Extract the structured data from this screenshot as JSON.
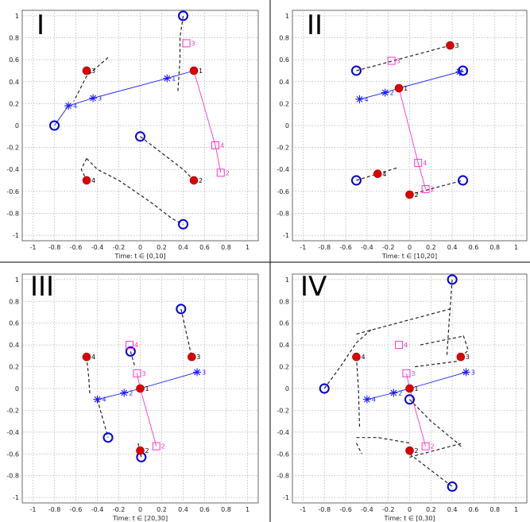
{
  "chart_data": [
    {
      "type": "scatter",
      "title": "I",
      "xlabel": "Time: t ∈ [0,10]",
      "xlim": [
        -1.1,
        1.1
      ],
      "ylim": [
        -1.05,
        1.05
      ],
      "xticks": [
        "-1",
        "-0.8",
        "-0.6",
        "-0.4",
        "-0.2",
        "0",
        "0.2",
        "0.4",
        "0.6",
        "0.8",
        "1"
      ],
      "yticks": [
        "1",
        "0.8",
        "0.6",
        "0.4",
        "0.2",
        "0",
        "-0.2",
        "-0.4",
        "-0.6",
        "-0.8",
        "-1"
      ],
      "grid": true,
      "open_circles": [
        [
          0.4,
          1.0
        ],
        [
          -0.8,
          0.0
        ],
        [
          0.0,
          -0.1
        ],
        [
          0.4,
          -0.9
        ]
      ],
      "red_dots": [
        {
          "x": 0.5,
          "y": 0.5,
          "label": "1"
        },
        {
          "x": 0.5,
          "y": -0.5,
          "label": "2"
        },
        {
          "x": -0.5,
          "y": 0.5,
          "label": "3"
        },
        {
          "x": -0.5,
          "y": -0.5,
          "label": "4"
        }
      ],
      "blue_stars": [
        {
          "x": 0.25,
          "y": 0.43,
          "label": "1"
        },
        {
          "x": -0.44,
          "y": 0.25,
          "label": "3"
        },
        {
          "x": -0.67,
          "y": 0.18,
          "label": "4"
        }
      ],
      "magenta_squares": [
        {
          "x": 0.43,
          "y": 0.75,
          "label": "3"
        },
        {
          "x": 0.7,
          "y": -0.18,
          "label": "4"
        },
        {
          "x": 0.75,
          "y": -0.43,
          "label": "2"
        }
      ],
      "blue_line": [
        [
          -0.8,
          0.0
        ],
        [
          -0.67,
          0.18
        ],
        [
          -0.44,
          0.25
        ],
        [
          0.25,
          0.43
        ],
        [
          0.5,
          0.5
        ]
      ],
      "magenta_line": [
        [
          0.5,
          0.5
        ],
        [
          0.7,
          -0.18
        ],
        [
          0.75,
          -0.43
        ]
      ],
      "dashed_paths": [
        [
          [
            -0.3,
            0.62
          ],
          [
            -0.5,
            0.45
          ],
          [
            -0.62,
            0.22
          ]
        ],
        [
          [
            0.4,
            1.0
          ],
          [
            0.37,
            0.8
          ],
          [
            0.37,
            0.6
          ],
          [
            0.35,
            0.3
          ]
        ],
        [
          [
            0.0,
            -0.1
          ],
          [
            0.2,
            -0.25
          ],
          [
            0.4,
            -0.4
          ],
          [
            0.5,
            -0.5
          ]
        ],
        [
          [
            -0.5,
            -0.3
          ],
          [
            -0.4,
            -0.4
          ],
          [
            -0.2,
            -0.5
          ],
          [
            0.1,
            -0.7
          ],
          [
            0.3,
            -0.85
          ],
          [
            0.4,
            -0.9
          ]
        ],
        [
          [
            -0.5,
            -0.3
          ],
          [
            -0.55,
            -0.4
          ],
          [
            -0.5,
            -0.5
          ]
        ]
      ]
    },
    {
      "type": "scatter",
      "title": "II",
      "xlabel": "Time: t ∈ [10,20]",
      "xlim": [
        -1.1,
        1.1
      ],
      "ylim": [
        -1.05,
        1.05
      ],
      "xticks": [
        "-1",
        "-0.8",
        "-0.6",
        "-0.4",
        "-0.2",
        "0",
        "0.2",
        "0.4",
        "0.6",
        "0.8",
        "1"
      ],
      "yticks": [
        "1",
        "0.8",
        "0.6",
        "0.4",
        "0.2",
        "0",
        "-0.2",
        "-0.4",
        "-0.6",
        "-0.8",
        "-1"
      ],
      "grid": true,
      "open_circles": [
        [
          -0.5,
          0.5
        ],
        [
          0.5,
          0.5
        ],
        [
          -0.5,
          -0.5
        ],
        [
          0.5,
          -0.5
        ]
      ],
      "red_dots": [
        {
          "x": -0.1,
          "y": 0.34,
          "label": "1"
        },
        {
          "x": 0.0,
          "y": -0.63,
          "label": "2"
        },
        {
          "x": 0.38,
          "y": 0.73,
          "label": "3"
        },
        {
          "x": -0.3,
          "y": -0.44,
          "label": "4"
        }
      ],
      "blue_stars": [
        {
          "x": 0.47,
          "y": 0.49,
          "label": "1"
        },
        {
          "x": -0.23,
          "y": 0.3,
          "label": "2"
        },
        {
          "x": -0.47,
          "y": 0.24,
          "label": "4"
        }
      ],
      "magenta_squares": [
        {
          "x": -0.17,
          "y": 0.59,
          "label": "3"
        },
        {
          "x": 0.08,
          "y": -0.34,
          "label": "4"
        },
        {
          "x": 0.15,
          "y": -0.58,
          "label": "2"
        }
      ],
      "blue_line": [
        [
          -0.47,
          0.24
        ],
        [
          -0.23,
          0.3
        ],
        [
          -0.1,
          0.34
        ],
        [
          0.47,
          0.49
        ],
        [
          0.5,
          0.5
        ]
      ],
      "magenta_line": [
        [
          -0.1,
          0.34
        ],
        [
          0.08,
          -0.34
        ],
        [
          0.15,
          -0.58
        ]
      ],
      "dashed_paths": [
        [
          [
            -0.5,
            0.5
          ],
          [
            0.38,
            0.73
          ]
        ],
        [
          [
            -0.5,
            -0.5
          ],
          [
            -0.1,
            -0.38
          ]
        ],
        [
          [
            0.0,
            -0.63
          ],
          [
            0.5,
            -0.5
          ]
        ],
        [
          [
            -0.5,
            0.5
          ],
          [
            -0.5,
            0.5
          ]
        ]
      ]
    },
    {
      "type": "scatter",
      "title": "III",
      "xlabel": "Time: t ∈ [20,30]",
      "xlim": [
        -1.1,
        1.1
      ],
      "ylim": [
        -1.05,
        1.05
      ],
      "xticks": [
        "-1",
        "-0.8",
        "-0.6",
        "-0.4",
        "-0.2",
        "0",
        "0.2",
        "0.4",
        "0.6",
        "0.8",
        "1"
      ],
      "yticks": [
        "1",
        "0.8",
        "0.6",
        "0.4",
        "0.2",
        "0",
        "-0.2",
        "-0.4",
        "-0.6",
        "-0.8",
        "-1"
      ],
      "grid": true,
      "open_circles": [
        [
          0.38,
          0.73
        ],
        [
          -0.09,
          0.34
        ],
        [
          -0.3,
          -0.45
        ],
        [
          0.01,
          -0.63
        ]
      ],
      "red_dots": [
        {
          "x": 0.0,
          "y": 0.0,
          "label": "1"
        },
        {
          "x": 0.0,
          "y": -0.57,
          "label": "2"
        },
        {
          "x": 0.48,
          "y": 0.29,
          "label": "3"
        },
        {
          "x": -0.5,
          "y": 0.29,
          "label": "4"
        }
      ],
      "blue_stars": [
        {
          "x": 0.53,
          "y": 0.15,
          "label": "3"
        },
        {
          "x": -0.15,
          "y": -0.04,
          "label": "2"
        },
        {
          "x": -0.4,
          "y": -0.1,
          "label": "4"
        }
      ],
      "magenta_squares": [
        {
          "x": -0.1,
          "y": 0.4,
          "label": "4"
        },
        {
          "x": -0.03,
          "y": 0.14,
          "label": "3"
        },
        {
          "x": 0.15,
          "y": -0.53,
          "label": "2"
        }
      ],
      "blue_line": [
        [
          -0.4,
          -0.1
        ],
        [
          -0.15,
          -0.04
        ],
        [
          0.0,
          0.0
        ],
        [
          0.53,
          0.15
        ]
      ],
      "magenta_line": [
        [
          -0.03,
          0.14
        ],
        [
          0.0,
          0.0
        ],
        [
          0.15,
          -0.53
        ]
      ],
      "dashed_paths": [
        [
          [
            0.38,
            0.73
          ],
          [
            0.48,
            0.29
          ]
        ],
        [
          [
            -0.5,
            0.29
          ],
          [
            -0.48,
            0.1
          ],
          [
            -0.47,
            -0.05
          ]
        ],
        [
          [
            -0.4,
            -0.1
          ],
          [
            -0.3,
            -0.45
          ]
        ],
        [
          [
            -0.09,
            0.34
          ],
          [
            -0.05,
            0.2
          ]
        ],
        [
          [
            0.01,
            -0.63
          ],
          [
            -0.02,
            -0.5
          ]
        ]
      ]
    },
    {
      "type": "scatter",
      "title": "IV",
      "xlabel": "Time: t ∈ [0,30]",
      "xlim": [
        -1.1,
        1.1
      ],
      "ylim": [
        -1.05,
        1.05
      ],
      "xticks": [
        "-1",
        "-0.8",
        "-0.6",
        "-0.4",
        "-0.2",
        "0",
        "0.2",
        "0.4",
        "0.6",
        "0.8",
        "1"
      ],
      "yticks": [
        "1",
        "0.8",
        "0.6",
        "0.4",
        "0.2",
        "0",
        "-0.2",
        "-0.4",
        "-0.6",
        "-0.8",
        "-1"
      ],
      "grid": true,
      "open_circles": [
        [
          0.4,
          1.0
        ],
        [
          -0.8,
          0.0
        ],
        [
          0.0,
          -0.1
        ],
        [
          0.4,
          -0.9
        ]
      ],
      "red_dots": [
        {
          "x": 0.0,
          "y": 0.0,
          "label": "1"
        },
        {
          "x": 0.0,
          "y": -0.57,
          "label": "2"
        },
        {
          "x": 0.48,
          "y": 0.29,
          "label": "3"
        },
        {
          "x": -0.5,
          "y": 0.29,
          "label": "4"
        }
      ],
      "blue_stars": [
        {
          "x": 0.53,
          "y": 0.15,
          "label": "3"
        },
        {
          "x": -0.15,
          "y": -0.04,
          "label": "2"
        },
        {
          "x": -0.4,
          "y": -0.1,
          "label": "4"
        }
      ],
      "magenta_squares": [
        {
          "x": -0.1,
          "y": 0.4,
          "label": "4"
        },
        {
          "x": -0.03,
          "y": 0.14,
          "label": "3"
        },
        {
          "x": 0.15,
          "y": -0.53,
          "label": "2"
        }
      ],
      "blue_line": [
        [
          -0.4,
          -0.1
        ],
        [
          -0.15,
          -0.04
        ],
        [
          0.0,
          0.0
        ],
        [
          0.53,
          0.15
        ]
      ],
      "magenta_line": [
        [
          -0.03,
          0.14
        ],
        [
          0.0,
          0.0
        ],
        [
          0.15,
          -0.53
        ]
      ],
      "dashed_paths": [
        [
          [
            -0.8,
            0.0
          ],
          [
            -0.65,
            0.2
          ],
          [
            -0.5,
            0.42
          ],
          [
            -0.35,
            0.55
          ]
        ],
        [
          [
            -0.5,
            0.5
          ],
          [
            0.38,
            0.73
          ]
        ],
        [
          [
            0.4,
            1.0
          ],
          [
            0.37,
            0.6
          ],
          [
            0.35,
            0.3
          ]
        ],
        [
          [
            -0.5,
            0.29
          ],
          [
            -0.48,
            0.0
          ],
          [
            -0.47,
            -0.35
          ]
        ],
        [
          [
            -0.5,
            -0.45
          ],
          [
            -0.3,
            -0.45
          ],
          [
            0.0,
            -0.5
          ]
        ],
        [
          [
            -0.5,
            -0.5
          ],
          [
            -0.45,
            -0.6
          ]
        ],
        [
          [
            0.0,
            -0.1
          ],
          [
            0.2,
            -0.3
          ],
          [
            0.45,
            -0.5
          ],
          [
            0.5,
            -0.55
          ]
        ],
        [
          [
            0.0,
            -0.63
          ],
          [
            0.5,
            -0.5
          ]
        ],
        [
          [
            0.0,
            -0.6
          ],
          [
            0.2,
            -0.75
          ],
          [
            0.4,
            -0.9
          ]
        ],
        [
          [
            0.1,
            0.4
          ],
          [
            0.5,
            0.48
          ]
        ],
        [
          [
            0.05,
            0.2
          ],
          [
            0.45,
            0.25
          ]
        ],
        [
          [
            0.48,
            0.29
          ],
          [
            0.55,
            0.35
          ],
          [
            0.5,
            0.5
          ]
        ]
      ]
    }
  ],
  "colors": {
    "red": "#dd0000",
    "blue": "#1a1aff",
    "magenta": "#ff33cc",
    "dash": "#222222",
    "grid": "#b0b0b0",
    "circle": "#0000dd"
  }
}
